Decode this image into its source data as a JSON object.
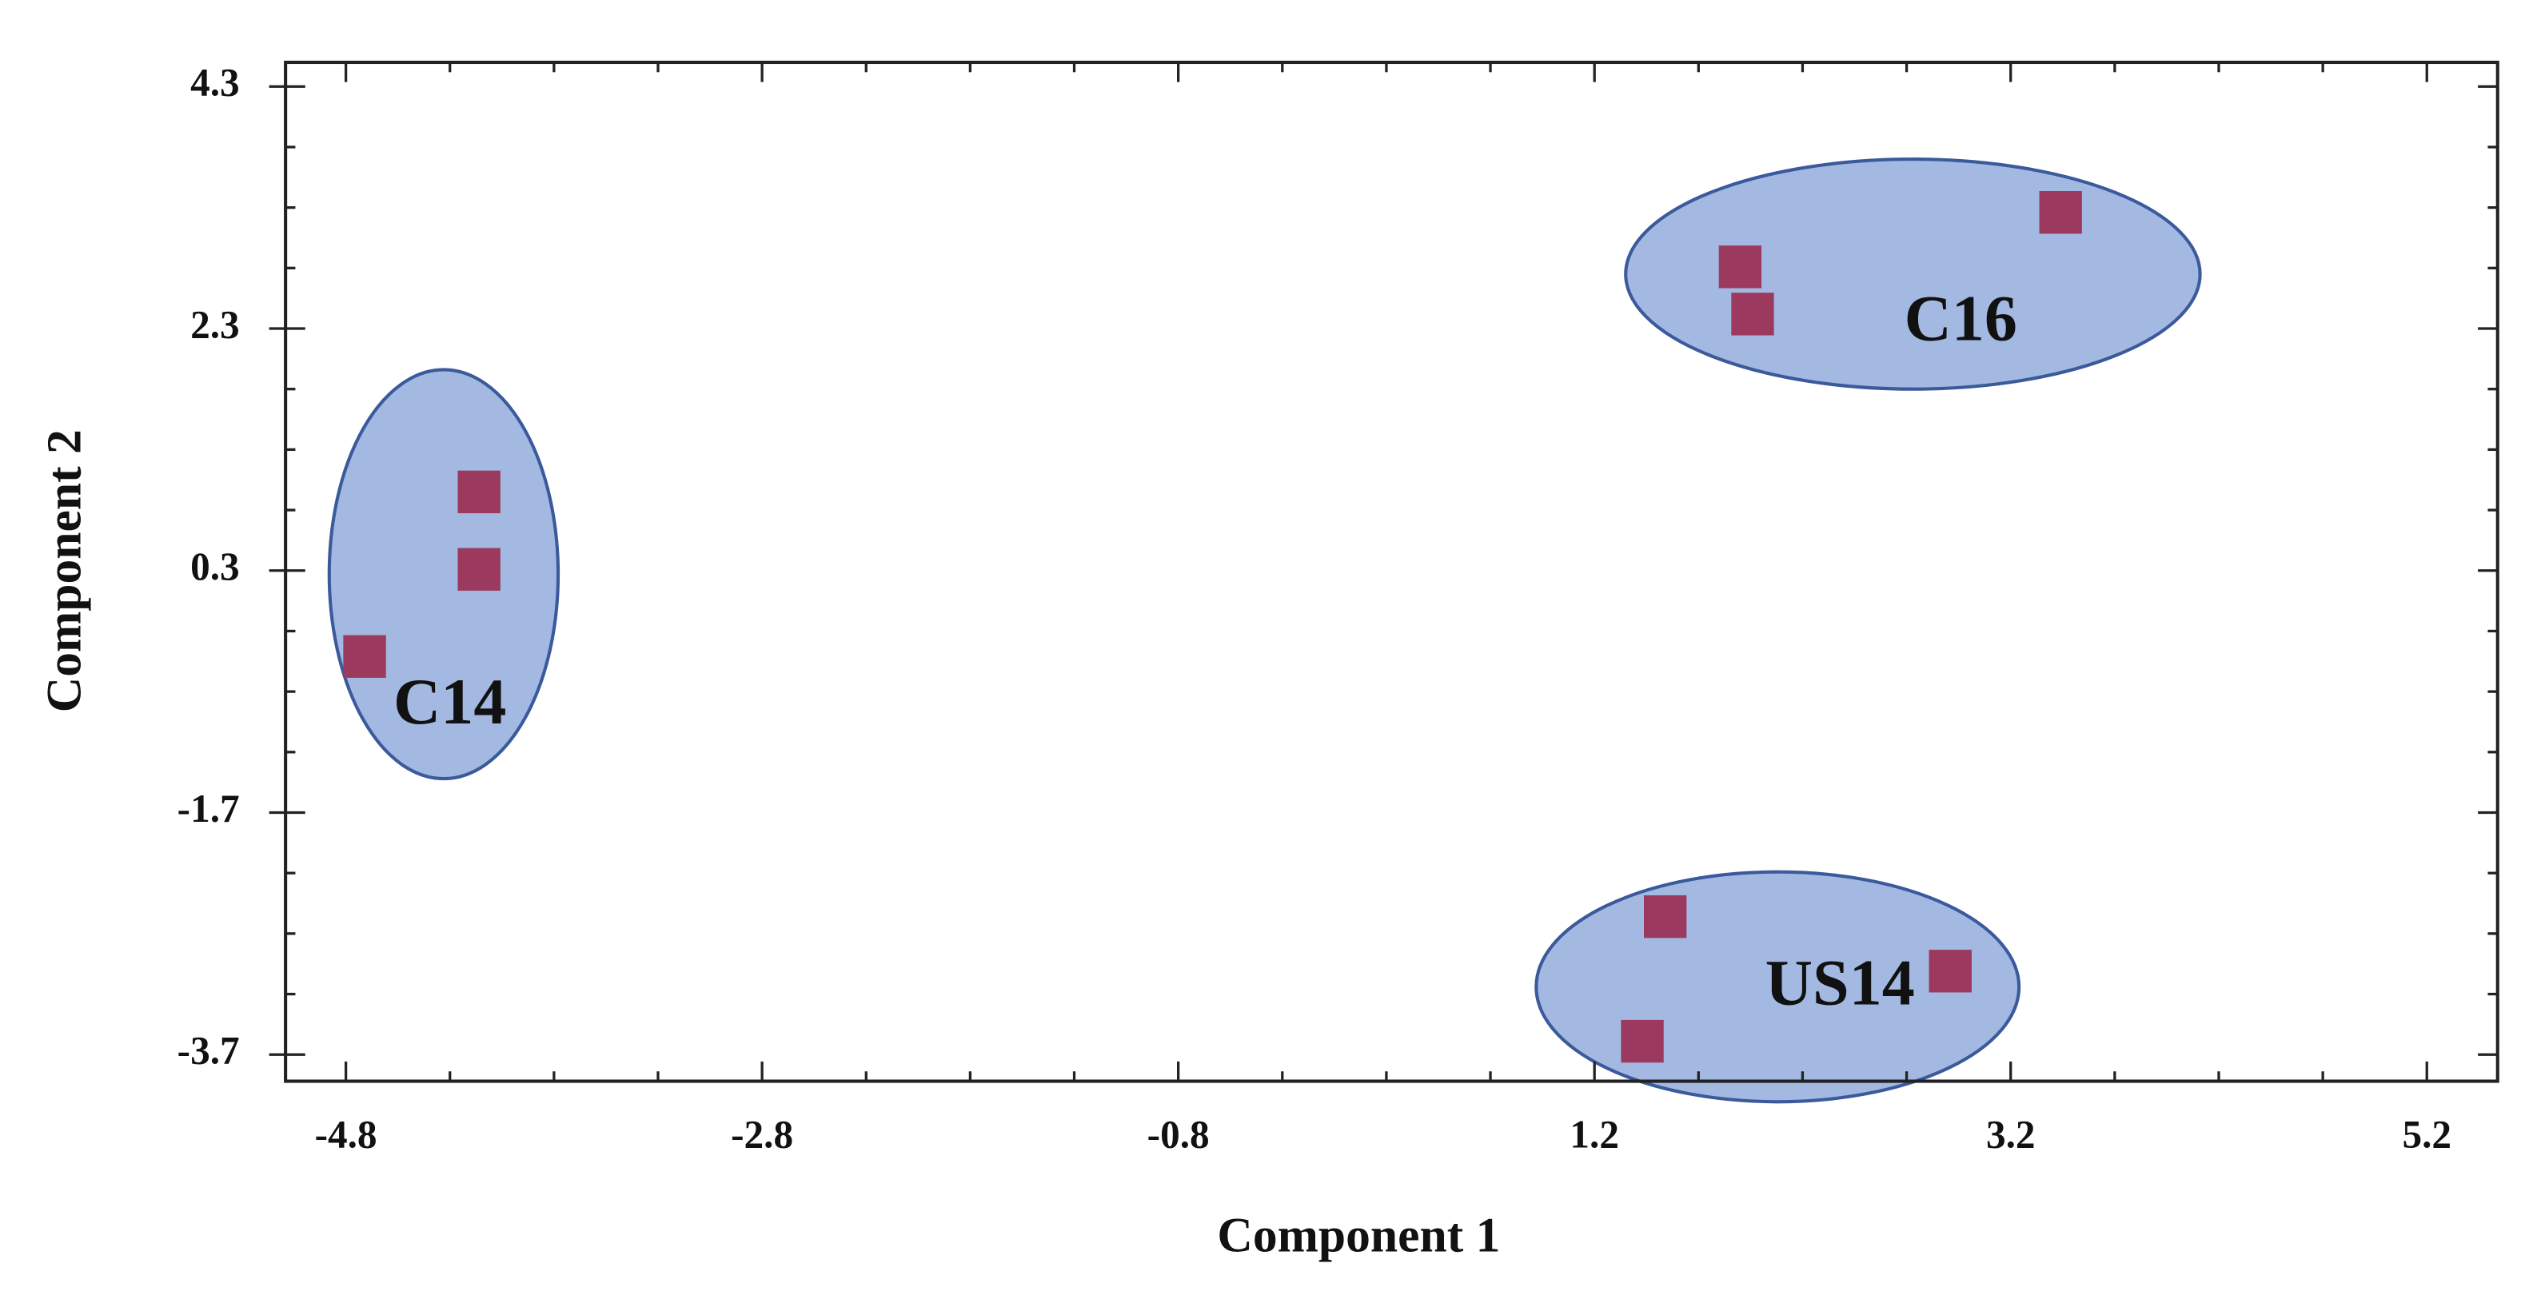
{
  "chart_data": {
    "type": "scatter",
    "x_label": "Component 1",
    "y_label": "Component 2",
    "x": [
      -4.16,
      -4.16,
      -4.71,
      1.9,
      1.96,
      3.44,
      1.54,
      2.91,
      1.43
    ],
    "values": [
      0.95,
      0.31,
      -0.41,
      2.81,
      2.42,
      3.26,
      -2.56,
      -3.01,
      -3.59
    ],
    "color": "#9b3a5e",
    "marker": "square",
    "xlim": [
      -5.09,
      5.54
    ],
    "ylim": [
      -3.92,
      4.5
    ],
    "xticks": [
      -4.8,
      -2.8,
      -0.8,
      1.2,
      3.2,
      5.2
    ],
    "yticks": [
      -3.7,
      -1.7,
      0.3,
      2.3,
      4.3
    ],
    "x_minor_ticks": [
      -4.3,
      -3.8,
      -3.3,
      -2.3,
      -1.8,
      -1.3,
      -0.3,
      0.2,
      0.7,
      1.7,
      2.2,
      2.7,
      3.7,
      4.2,
      4.7
    ],
    "y_minor_ticks": [
      -3.2,
      -2.7,
      -2.2,
      -1.2,
      -0.7,
      -0.2,
      0.8,
      1.3,
      1.8,
      2.8,
      3.3,
      3.8
    ],
    "groups": [
      {
        "label": "C14",
        "cx": -4.33,
        "cy": 0.27,
        "rx": 0.55,
        "ry": 1.69,
        "label_x": -4.3,
        "label_y": -0.84
      },
      {
        "label": "C16",
        "cx": 2.73,
        "cy": 2.75,
        "rx": 1.38,
        "ry": 0.95,
        "label_x": 2.96,
        "label_y": 2.33
      },
      {
        "label": "US14",
        "cx": 2.08,
        "cy": -3.14,
        "rx": 1.16,
        "ry": 0.95,
        "label_x": 2.38,
        "label_y": -3.16
      }
    ],
    "group_fill": "#a3b9e1",
    "group_stroke": "#3b5a9c"
  }
}
